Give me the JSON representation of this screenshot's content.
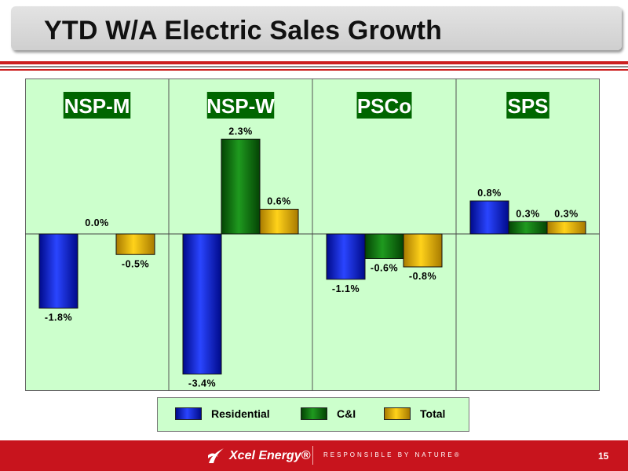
{
  "title": "YTD W/A Electric Sales Growth",
  "colors": {
    "Residential": "#1a2ee0",
    "C&I": "#0f7a0f",
    "Total": "#e8b800",
    "chart_background": "#ccffcc",
    "header_box": "#006600"
  },
  "chart_data": {
    "type": "bar",
    "panels": [
      "NSP-M",
      "NSP-W",
      "PSCo",
      "SPS"
    ],
    "series": [
      {
        "name": "Residential",
        "values": [
          -1.8,
          -3.4,
          -1.1,
          0.8
        ]
      },
      {
        "name": "C&I",
        "values": [
          0.0,
          2.3,
          -0.6,
          0.3
        ]
      },
      {
        "name": "Total",
        "values": [
          -0.5,
          0.6,
          -0.8,
          0.3
        ]
      }
    ],
    "labels": [
      [
        "-1.8%",
        "0.0%",
        "-0.5%"
      ],
      [
        "-3.4%",
        "2.3%",
        "0.6%"
      ],
      [
        "-1.1%",
        "-0.6%",
        "-0.8%"
      ],
      [
        "0.8%",
        "0.3%",
        "0.3%"
      ]
    ],
    "ylim": [
      -4.0,
      2.5
    ],
    "legend_position": "bottom",
    "grid": false
  },
  "legend": {
    "items": [
      "Residential",
      "C&I",
      "Total"
    ]
  },
  "footer": {
    "logo_text": "Xcel Energy®",
    "tagline": "RESPONSIBLE BY NATURE®",
    "page_number": "15"
  }
}
